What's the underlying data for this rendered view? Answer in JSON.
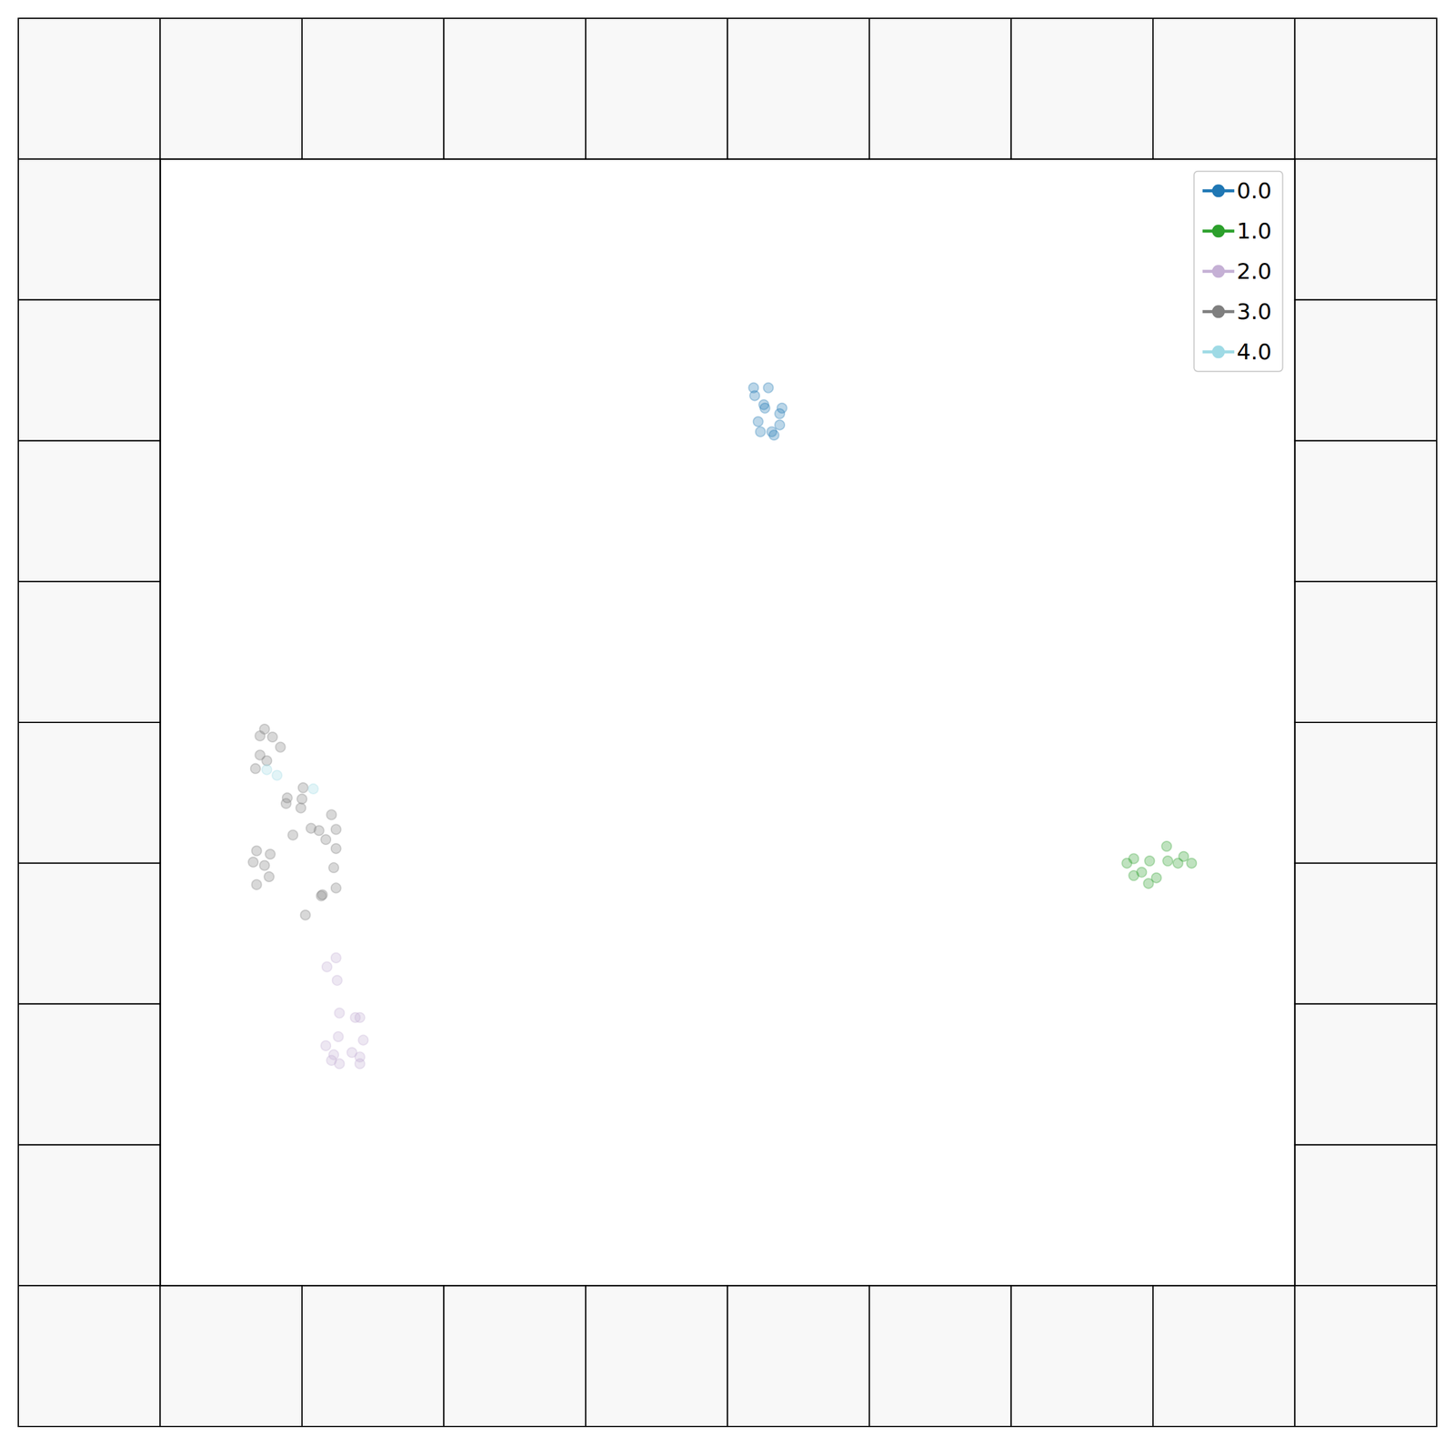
{
  "chart_data": {
    "type": "scatter",
    "xlim": [
      0,
      100
    ],
    "ylim": [
      0,
      100
    ],
    "tick_labels": false,
    "grid": false,
    "legend": "upper right",
    "marker": "circle",
    "series": [
      {
        "name": "0.0",
        "color": "#1f77b4",
        "x": [
          52.3,
          53.6,
          52.4,
          53.2,
          53.3,
          54.8,
          54.6,
          52.7,
          54.6,
          52.9,
          53.9,
          54.1
        ],
        "y": [
          79.7,
          79.7,
          79.0,
          78.2,
          77.9,
          77.9,
          77.4,
          76.7,
          76.4,
          75.8,
          75.8,
          75.5
        ]
      },
      {
        "name": "1.0",
        "color": "#2ca02c",
        "x": [
          85.2,
          85.8,
          86.5,
          85.8,
          87.2,
          87.1,
          87.8,
          88.7,
          88.8,
          89.7,
          90.2,
          90.9
        ],
        "y": [
          37.5,
          37.9,
          36.7,
          36.4,
          37.7,
          35.7,
          36.2,
          39.0,
          37.7,
          37.5,
          38.1,
          37.5
        ]
      },
      {
        "name": "2.0",
        "color": "#c5b0d5",
        "x": [
          15.5,
          14.7,
          15.6,
          15.8,
          17.2,
          17.6,
          15.7,
          17.9,
          14.6,
          16.9,
          15.3,
          15.1,
          17.6,
          15.8,
          17.6
        ],
        "y": [
          29.1,
          28.3,
          27.1,
          24.2,
          23.8,
          23.8,
          22.1,
          21.8,
          21.3,
          20.7,
          20.5,
          20.0,
          20.3,
          19.7,
          19.7
        ]
      },
      {
        "name": "3.0",
        "color": "#7f7f7f",
        "x": [
          9.2,
          8.8,
          9.9,
          10.6,
          8.8,
          9.4,
          8.4,
          11.2,
          12.6,
          11.1,
          12.5,
          12.4,
          15.1,
          13.3,
          14.0,
          15.5,
          11.7,
          14.6,
          15.5,
          8.5,
          9.7,
          8.2,
          9.2,
          9.6,
          8.5,
          15.3,
          14.3,
          14.2,
          15.5,
          12.8
        ],
        "y": [
          49.4,
          48.8,
          48.7,
          47.8,
          47.1,
          46.6,
          45.9,
          43.3,
          44.2,
          42.8,
          43.2,
          42.4,
          41.8,
          40.6,
          40.4,
          40.5,
          40.0,
          39.6,
          38.8,
          38.6,
          38.3,
          37.6,
          37.3,
          36.3,
          35.6,
          37.1,
          34.7,
          34.6,
          35.3,
          32.9
        ]
      },
      {
        "name": "4.0",
        "color": "#9edae5",
        "x": [
          9.4,
          10.3,
          13.5
        ],
        "y": [
          45.8,
          45.3,
          44.1
        ]
      }
    ]
  }
}
